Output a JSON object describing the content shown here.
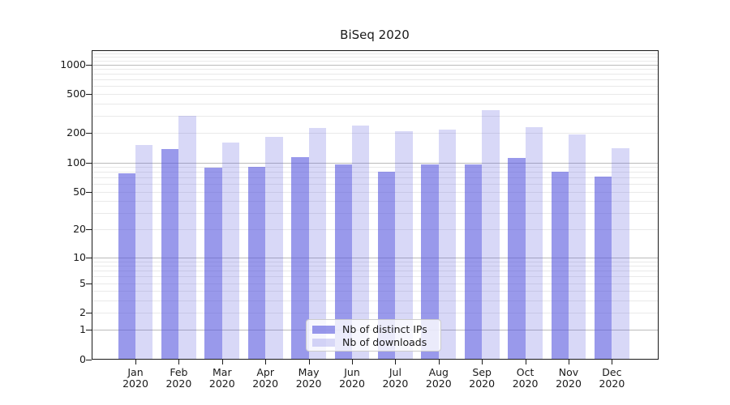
{
  "title": "BiSeq 2020",
  "legend": {
    "items": [
      {
        "label": "Nb of distinct IPs",
        "color": "rgba(85,85,221,0.60)"
      },
      {
        "label": "Nb of downloads",
        "color": "rgba(85,85,221,0.23)"
      }
    ]
  },
  "chart_data": {
    "type": "bar",
    "title": "BiSeq 2020",
    "xlabel": "",
    "ylabel": "",
    "yscale": "log1p",
    "ylim": [
      0,
      1400
    ],
    "grid": true,
    "legend_position": "lower center",
    "year": "2020",
    "categories": [
      "Jan",
      "Feb",
      "Mar",
      "Apr",
      "May",
      "Jun",
      "Jul",
      "Aug",
      "Sep",
      "Oct",
      "Nov",
      "Dec"
    ],
    "y_ticks": [
      0,
      1,
      2,
      5,
      10,
      20,
      50,
      100,
      200,
      500,
      1000
    ],
    "series": [
      {
        "name": "Nb of distinct IPs",
        "color": "rgba(85,85,221,0.60)",
        "values": [
          77,
          137,
          88,
          90,
          114,
          96,
          81,
          95,
          96,
          112,
          80,
          72
        ]
      },
      {
        "name": "Nb of downloads",
        "color": "rgba(85,85,221,0.23)",
        "values": [
          152,
          302,
          160,
          183,
          225,
          238,
          210,
          218,
          340,
          231,
          192,
          140
        ]
      }
    ],
    "colors": {
      "grid_major": "#bbbbbb",
      "grid_minor": "#e9e9e9",
      "axis": "#1a1a1a",
      "text": "#1a1a1a",
      "legend_border": "#cccccc"
    }
  }
}
